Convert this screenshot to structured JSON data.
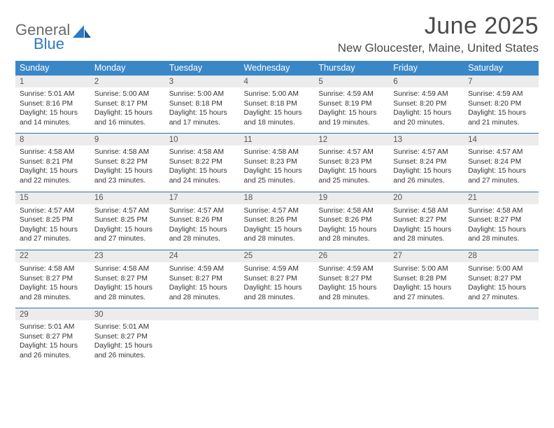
{
  "brand": {
    "general": "General",
    "blue": "Blue"
  },
  "title": "June 2025",
  "location": "New Gloucester, Maine, United States",
  "colors": {
    "header_bg": "#3a87c8",
    "header_text": "#ffffff",
    "daynum_bg": "#ececec",
    "rule": "#2f6fa8",
    "body_text": "#333333",
    "brand_gray": "#6a6a6a",
    "brand_blue": "#2f78c2"
  },
  "weekdays": [
    "Sunday",
    "Monday",
    "Tuesday",
    "Wednesday",
    "Thursday",
    "Friday",
    "Saturday"
  ],
  "weeks": [
    {
      "nums": [
        "1",
        "2",
        "3",
        "4",
        "5",
        "6",
        "7"
      ],
      "cells": [
        {
          "sunrise": "Sunrise: 5:01 AM",
          "sunset": "Sunset: 8:16 PM",
          "day1": "Daylight: 15 hours",
          "day2": "and 14 minutes."
        },
        {
          "sunrise": "Sunrise: 5:00 AM",
          "sunset": "Sunset: 8:17 PM",
          "day1": "Daylight: 15 hours",
          "day2": "and 16 minutes."
        },
        {
          "sunrise": "Sunrise: 5:00 AM",
          "sunset": "Sunset: 8:18 PM",
          "day1": "Daylight: 15 hours",
          "day2": "and 17 minutes."
        },
        {
          "sunrise": "Sunrise: 5:00 AM",
          "sunset": "Sunset: 8:18 PM",
          "day1": "Daylight: 15 hours",
          "day2": "and 18 minutes."
        },
        {
          "sunrise": "Sunrise: 4:59 AM",
          "sunset": "Sunset: 8:19 PM",
          "day1": "Daylight: 15 hours",
          "day2": "and 19 minutes."
        },
        {
          "sunrise": "Sunrise: 4:59 AM",
          "sunset": "Sunset: 8:20 PM",
          "day1": "Daylight: 15 hours",
          "day2": "and 20 minutes."
        },
        {
          "sunrise": "Sunrise: 4:59 AM",
          "sunset": "Sunset: 8:20 PM",
          "day1": "Daylight: 15 hours",
          "day2": "and 21 minutes."
        }
      ]
    },
    {
      "nums": [
        "8",
        "9",
        "10",
        "11",
        "12",
        "13",
        "14"
      ],
      "cells": [
        {
          "sunrise": "Sunrise: 4:58 AM",
          "sunset": "Sunset: 8:21 PM",
          "day1": "Daylight: 15 hours",
          "day2": "and 22 minutes."
        },
        {
          "sunrise": "Sunrise: 4:58 AM",
          "sunset": "Sunset: 8:22 PM",
          "day1": "Daylight: 15 hours",
          "day2": "and 23 minutes."
        },
        {
          "sunrise": "Sunrise: 4:58 AM",
          "sunset": "Sunset: 8:22 PM",
          "day1": "Daylight: 15 hours",
          "day2": "and 24 minutes."
        },
        {
          "sunrise": "Sunrise: 4:58 AM",
          "sunset": "Sunset: 8:23 PM",
          "day1": "Daylight: 15 hours",
          "day2": "and 25 minutes."
        },
        {
          "sunrise": "Sunrise: 4:57 AM",
          "sunset": "Sunset: 8:23 PM",
          "day1": "Daylight: 15 hours",
          "day2": "and 25 minutes."
        },
        {
          "sunrise": "Sunrise: 4:57 AM",
          "sunset": "Sunset: 8:24 PM",
          "day1": "Daylight: 15 hours",
          "day2": "and 26 minutes."
        },
        {
          "sunrise": "Sunrise: 4:57 AM",
          "sunset": "Sunset: 8:24 PM",
          "day1": "Daylight: 15 hours",
          "day2": "and 27 minutes."
        }
      ]
    },
    {
      "nums": [
        "15",
        "16",
        "17",
        "18",
        "19",
        "20",
        "21"
      ],
      "cells": [
        {
          "sunrise": "Sunrise: 4:57 AM",
          "sunset": "Sunset: 8:25 PM",
          "day1": "Daylight: 15 hours",
          "day2": "and 27 minutes."
        },
        {
          "sunrise": "Sunrise: 4:57 AM",
          "sunset": "Sunset: 8:25 PM",
          "day1": "Daylight: 15 hours",
          "day2": "and 27 minutes."
        },
        {
          "sunrise": "Sunrise: 4:57 AM",
          "sunset": "Sunset: 8:26 PM",
          "day1": "Daylight: 15 hours",
          "day2": "and 28 minutes."
        },
        {
          "sunrise": "Sunrise: 4:57 AM",
          "sunset": "Sunset: 8:26 PM",
          "day1": "Daylight: 15 hours",
          "day2": "and 28 minutes."
        },
        {
          "sunrise": "Sunrise: 4:58 AM",
          "sunset": "Sunset: 8:26 PM",
          "day1": "Daylight: 15 hours",
          "day2": "and 28 minutes."
        },
        {
          "sunrise": "Sunrise: 4:58 AM",
          "sunset": "Sunset: 8:27 PM",
          "day1": "Daylight: 15 hours",
          "day2": "and 28 minutes."
        },
        {
          "sunrise": "Sunrise: 4:58 AM",
          "sunset": "Sunset: 8:27 PM",
          "day1": "Daylight: 15 hours",
          "day2": "and 28 minutes."
        }
      ]
    },
    {
      "nums": [
        "22",
        "23",
        "24",
        "25",
        "26",
        "27",
        "28"
      ],
      "cells": [
        {
          "sunrise": "Sunrise: 4:58 AM",
          "sunset": "Sunset: 8:27 PM",
          "day1": "Daylight: 15 hours",
          "day2": "and 28 minutes."
        },
        {
          "sunrise": "Sunrise: 4:58 AM",
          "sunset": "Sunset: 8:27 PM",
          "day1": "Daylight: 15 hours",
          "day2": "and 28 minutes."
        },
        {
          "sunrise": "Sunrise: 4:59 AM",
          "sunset": "Sunset: 8:27 PM",
          "day1": "Daylight: 15 hours",
          "day2": "and 28 minutes."
        },
        {
          "sunrise": "Sunrise: 4:59 AM",
          "sunset": "Sunset: 8:27 PM",
          "day1": "Daylight: 15 hours",
          "day2": "and 28 minutes."
        },
        {
          "sunrise": "Sunrise: 4:59 AM",
          "sunset": "Sunset: 8:27 PM",
          "day1": "Daylight: 15 hours",
          "day2": "and 28 minutes."
        },
        {
          "sunrise": "Sunrise: 5:00 AM",
          "sunset": "Sunset: 8:28 PM",
          "day1": "Daylight: 15 hours",
          "day2": "and 27 minutes."
        },
        {
          "sunrise": "Sunrise: 5:00 AM",
          "sunset": "Sunset: 8:27 PM",
          "day1": "Daylight: 15 hours",
          "day2": "and 27 minutes."
        }
      ]
    },
    {
      "nums": [
        "29",
        "30",
        "",
        "",
        "",
        "",
        ""
      ],
      "cells": [
        {
          "sunrise": "Sunrise: 5:01 AM",
          "sunset": "Sunset: 8:27 PM",
          "day1": "Daylight: 15 hours",
          "day2": "and 26 minutes."
        },
        {
          "sunrise": "Sunrise: 5:01 AM",
          "sunset": "Sunset: 8:27 PM",
          "day1": "Daylight: 15 hours",
          "day2": "and 26 minutes."
        },
        null,
        null,
        null,
        null,
        null
      ]
    }
  ]
}
